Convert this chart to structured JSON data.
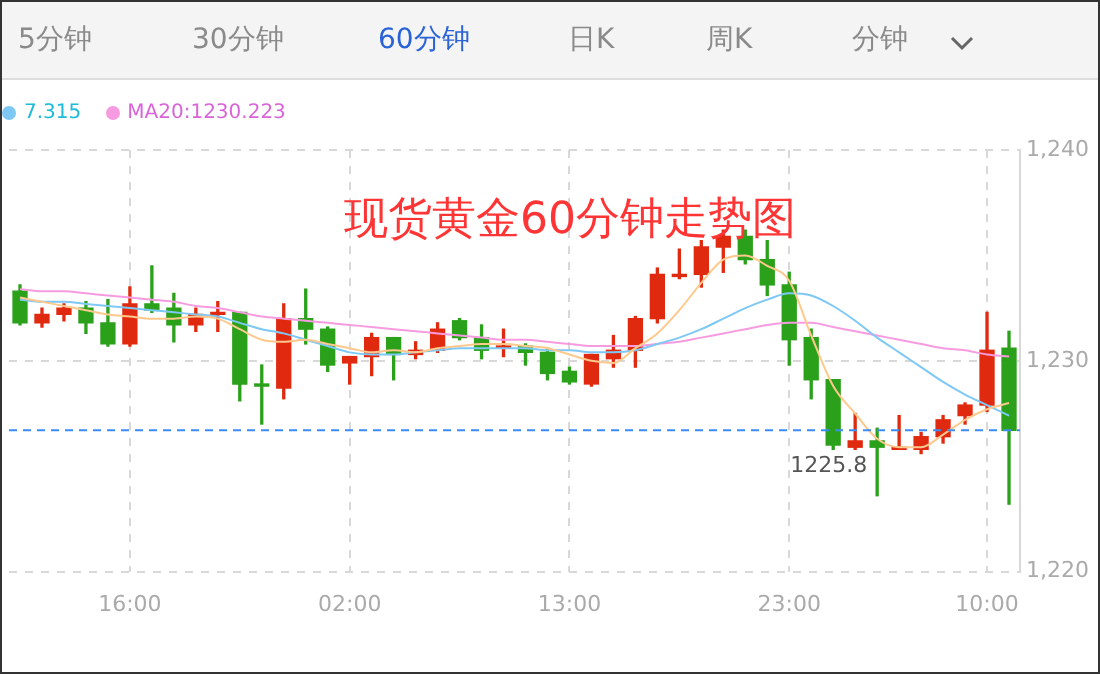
{
  "chart_data": {
    "type": "candlestick",
    "title": "现货黄金60分钟走势图",
    "categories": [
      null,
      null,
      null,
      null,
      null,
      "16:00",
      null,
      null,
      null,
      null,
      null,
      null,
      null,
      null,
      null,
      "02:00",
      null,
      null,
      null,
      null,
      null,
      null,
      null,
      null,
      null,
      "13:00",
      null,
      null,
      null,
      null,
      null,
      null,
      null,
      null,
      null,
      "23:00",
      null,
      null,
      null,
      null,
      null,
      null,
      null,
      null,
      "10:00",
      null
    ],
    "ohlc": [
      [
        1233.3,
        1233.6,
        1231.7,
        1231.8
      ],
      [
        1231.8,
        1232.5,
        1231.6,
        1232.2
      ],
      [
        1232.2,
        1232.7,
        1231.9,
        1232.5
      ],
      [
        1232.5,
        1232.8,
        1231.3,
        1231.8
      ],
      [
        1231.8,
        1232.9,
        1230.7,
        1230.8
      ],
      [
        1230.8,
        1233.5,
        1230.7,
        1232.7
      ],
      [
        1232.7,
        1234.5,
        1232.3,
        1232.4
      ],
      [
        1232.5,
        1233.2,
        1230.9,
        1231.7
      ],
      [
        1231.7,
        1232.5,
        1231.4,
        1232.2
      ],
      [
        1232.2,
        1232.8,
        1231.4,
        1232.3
      ],
      [
        1232.3,
        1232.3,
        1228.1,
        1228.9
      ],
      [
        1228.9,
        1229.8,
        1227,
        1228.8
      ],
      [
        1228.7,
        1232.7,
        1228.2,
        1232
      ],
      [
        1232,
        1233.4,
        1230.8,
        1231.5
      ],
      [
        1231.5,
        1231.6,
        1229.5,
        1229.8
      ],
      [
        1229.9,
        1230.2,
        1228.9,
        1230.2
      ],
      [
        1230.2,
        1231.3,
        1229.3,
        1231.1
      ],
      [
        1231.1,
        1231.1,
        1229.1,
        1230.3
      ],
      [
        1230.3,
        1230.9,
        1230.1,
        1230.5
      ],
      [
        1230.5,
        1231.8,
        1230.4,
        1231.5
      ],
      [
        1231.9,
        1232,
        1231,
        1231.1
      ],
      [
        1231.1,
        1231.7,
        1230.1,
        1230.5
      ],
      [
        1230.6,
        1231.5,
        1230.2,
        1230.7
      ],
      [
        1230.7,
        1230.8,
        1229.8,
        1230.4
      ],
      [
        1230.4,
        1230.6,
        1229.1,
        1229.4
      ],
      [
        1229.5,
        1229.7,
        1228.9,
        1229
      ],
      [
        1228.9,
        1230.3,
        1228.8,
        1230.3
      ],
      [
        1230.1,
        1231.2,
        1229.7,
        1230.5
      ],
      [
        1230.5,
        1232.1,
        1229.7,
        1232
      ],
      [
        1232,
        1234.4,
        1231.8,
        1234.1
      ],
      [
        1234,
        1235.3,
        1233.9,
        1234.1
      ],
      [
        1234.1,
        1235.7,
        1233.5,
        1235.4
      ],
      [
        1235.4,
        1236.2,
        1234.2,
        1235.9
      ],
      [
        1235.9,
        1236.2,
        1234.6,
        1234.8
      ],
      [
        1234.8,
        1235.7,
        1233.1,
        1233.6
      ],
      [
        1233.6,
        1234.2,
        1229.8,
        1231
      ],
      [
        1231.1,
        1231.5,
        1228.2,
        1229.1
      ],
      [
        1229.1,
        1229.1,
        1225.8,
        1226
      ],
      [
        1225.9,
        1227.5,
        1225.8,
        1226.2
      ],
      [
        1226.2,
        1226.8,
        1223.6,
        1225.9
      ],
      [
        1225.8,
        1227.4,
        1225.8,
        1225.9
      ],
      [
        1225.8,
        1226.6,
        1225.6,
        1226.4
      ],
      [
        1226.4,
        1227.4,
        1226.1,
        1227.2
      ],
      [
        1227.4,
        1228,
        1227,
        1227.9
      ],
      [
        1227.9,
        1232.3,
        1227.6,
        1230.5
      ],
      [
        1230.6,
        1231.4,
        1223.2,
        1226.7
      ]
    ],
    "colors": [
      "#2ba11b",
      "#e02a0f",
      "#e02a0f",
      "#2ba11b",
      "#2ba11b",
      "#e02a0f",
      "#2ba11b",
      "#2ba11b",
      "#e02a0f",
      "#e02a0f",
      "#2ba11b",
      "#2ba11b",
      "#e02a0f",
      "#2ba11b",
      "#2ba11b",
      "#e02a0f",
      "#e02a0f",
      "#2ba11b",
      "#e02a0f",
      "#e02a0f",
      "#2ba11b",
      "#2ba11b",
      "#e02a0f",
      "#2ba11b",
      "#2ba11b",
      "#2ba11b",
      "#e02a0f",
      "#e02a0f",
      "#e02a0f",
      "#e02a0f",
      "#e02a0f",
      "#e02a0f",
      "#e02a0f",
      "#2ba11b",
      "#2ba11b",
      "#2ba11b",
      "#2ba11b",
      "#2ba11b",
      "#e02a0f",
      "#2ba11b",
      "#e02a0f",
      "#e02a0f",
      "#e02a0f",
      "#e02a0f",
      "#e02a0f",
      "#2ba11b"
    ],
    "series": [
      {
        "type": "line",
        "color": "#ffc88c",
        "values": [
          1233.0,
          1232.8,
          1232.6,
          1232.4,
          1232.2,
          1232.1,
          1232.0,
          1232.0,
          1232.1,
          1232.0,
          1231.5,
          1231.0,
          1230.9,
          1231.0,
          1230.8,
          1230.6,
          1230.4,
          1230.5,
          1230.4,
          1230.6,
          1230.7,
          1230.8,
          1230.8,
          1230.7,
          1230.6,
          1230.3,
          1230.0,
          1229.9,
          1230.6,
          1231.3,
          1232.4,
          1233.7,
          1234.8,
          1235.0,
          1234.5,
          1233.8,
          1231.2,
          1228.8,
          1227.5,
          1226.3,
          1225.9,
          1225.9,
          1226.5,
          1227.2,
          1227.7,
          1228.0
        ]
      },
      {
        "type": "line",
        "name": "7.315",
        "color": "#7ec8f5",
        "values": [
          1232.9,
          1232.8,
          1232.8,
          1232.7,
          1232.6,
          1232.5,
          1232.4,
          1232.3,
          1232.2,
          1232.1,
          1231.8,
          1231.5,
          1231.3,
          1231.0,
          1230.7,
          1230.4,
          1230.3,
          1230.3,
          1230.4,
          1230.5,
          1230.6,
          1230.6,
          1230.6,
          1230.6,
          1230.5,
          1230.5,
          1230.4,
          1230.4,
          1230.5,
          1230.8,
          1231.1,
          1231.5,
          1232.0,
          1232.5,
          1232.9,
          1233.2,
          1233.1,
          1232.6,
          1231.9,
          1231.1,
          1230.4,
          1229.7,
          1229.0,
          1228.4,
          1227.9,
          1227.4
        ]
      },
      {
        "type": "line",
        "name": "MA20:1230.223",
        "color": "#f79be0",
        "values": [
          1233.4,
          1233.3,
          1233.3,
          1233.2,
          1233.1,
          1233.0,
          1232.9,
          1232.8,
          1232.6,
          1232.5,
          1232.3,
          1232.1,
          1232.0,
          1231.9,
          1231.8,
          1231.7,
          1231.6,
          1231.5,
          1231.4,
          1231.3,
          1231.2,
          1231.1,
          1231.0,
          1231.0,
          1230.9,
          1230.8,
          1230.7,
          1230.7,
          1230.7,
          1230.8,
          1230.9,
          1231.1,
          1231.3,
          1231.5,
          1231.7,
          1231.8,
          1231.8,
          1231.6,
          1231.4,
          1231.2,
          1231.0,
          1230.8,
          1230.6,
          1230.5,
          1230.3,
          1230.2
        ]
      }
    ],
    "ylim": [
      1220,
      1240
    ],
    "yticks": [
      {
        "value": 1220,
        "label": "1,220"
      },
      {
        "value": 1230,
        "label": "1,230"
      },
      {
        "value": 1240,
        "label": "1,240"
      }
    ],
    "ref_lines": [
      {
        "axis": "y",
        "value": 1226.7,
        "color": "#3b8cf5",
        "line_style": "dashed"
      }
    ],
    "annotations": [
      "5分钟",
      "30分钟",
      "60分钟",
      "日K",
      "周K",
      "分钟",
      {
        "text": "1225.8",
        "y": 1225.8
      }
    ],
    "grid": true,
    "legend": "top left"
  }
}
